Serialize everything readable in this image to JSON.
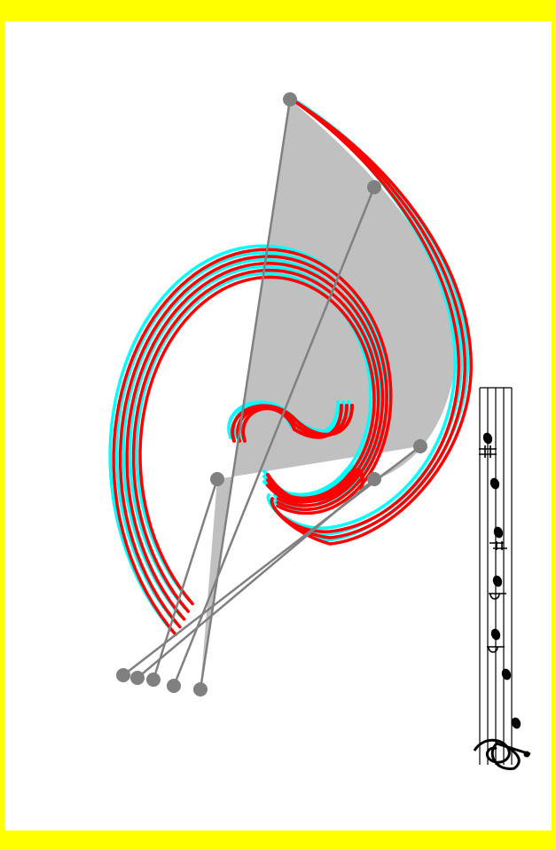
{
  "colors": {
    "background_frame": "#ffff00",
    "panel": "#ffffff",
    "fan_fill": "#c0c0c0",
    "construction_line": "#808080",
    "control_point": "#808080",
    "curve_red": "#ff0000",
    "curve_cyan": "#00ffff",
    "staff_ink": "#000000"
  },
  "staff": {
    "clef": "treble-clef",
    "notes": [
      {
        "accidental": "none"
      },
      {
        "accidental": "none"
      },
      {
        "accidental": "flat"
      },
      {
        "accidental": "flat"
      },
      {
        "accidental": "natural"
      },
      {
        "accidental": "none"
      },
      {
        "accidental": "sharp"
      }
    ]
  }
}
